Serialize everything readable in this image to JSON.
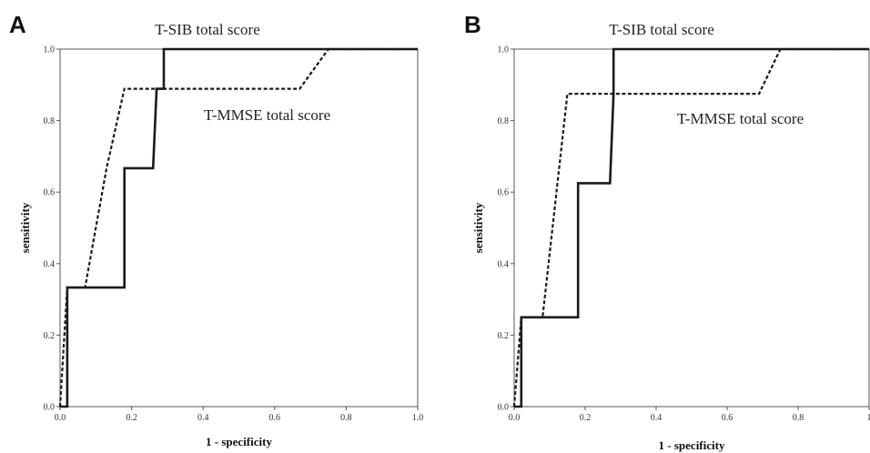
{
  "chart_data": [
    {
      "type": "line",
      "panel": "A",
      "xlabel": "1 - specificity",
      "ylabel": "sensitivity",
      "xlim": [
        0,
        1
      ],
      "ylim": [
        0,
        1
      ],
      "x_ticks": [
        "0.0",
        "0.2",
        "0.4",
        "0.6",
        "0.8",
        "1.0"
      ],
      "y_ticks": [
        "0.0",
        "0.2",
        "0.4",
        "0.6",
        "0.8",
        "1.0"
      ],
      "grid": false,
      "legend": "none",
      "series": [
        {
          "name": "T-SIB total score",
          "style": "solid",
          "points": [
            [
              0.0,
              0.0
            ],
            [
              0.02,
              0.0
            ],
            [
              0.02,
              0.333
            ],
            [
              0.18,
              0.333
            ],
            [
              0.18,
              0.667
            ],
            [
              0.26,
              0.667
            ],
            [
              0.27,
              0.889
            ],
            [
              0.29,
              0.889
            ],
            [
              0.29,
              1.0
            ],
            [
              1.0,
              1.0
            ]
          ]
        },
        {
          "name": "T-MMSE total score",
          "style": "dotted",
          "points": [
            [
              0.0,
              0.0
            ],
            [
              0.02,
              0.333
            ],
            [
              0.07,
              0.333
            ],
            [
              0.13,
              0.667
            ],
            [
              0.18,
              0.889
            ],
            [
              0.67,
              0.889
            ],
            [
              0.75,
              1.0
            ],
            [
              1.0,
              1.0
            ]
          ]
        }
      ]
    },
    {
      "type": "line",
      "panel": "B",
      "xlabel": "1 - specificity",
      "ylabel": "sensitivity",
      "xlim": [
        0,
        1
      ],
      "ylim": [
        0,
        1
      ],
      "x_ticks": [
        "0.0",
        "0.2",
        "0.4",
        "0.6",
        "0.8",
        "1"
      ],
      "y_ticks": [
        "0.0",
        "0.2",
        "0.4",
        "0.6",
        "0.8",
        "1.0"
      ],
      "grid": false,
      "legend": "none",
      "series": [
        {
          "name": "T-SIB total score",
          "style": "solid",
          "points": [
            [
              0.0,
              0.0
            ],
            [
              0.02,
              0.0
            ],
            [
              0.02,
              0.25
            ],
            [
              0.18,
              0.25
            ],
            [
              0.18,
              0.625
            ],
            [
              0.27,
              0.625
            ],
            [
              0.28,
              0.875
            ],
            [
              0.28,
              1.0
            ],
            [
              1.0,
              1.0
            ]
          ]
        },
        {
          "name": "T-MMSE total score",
          "style": "dotted",
          "points": [
            [
              0.0,
              0.0
            ],
            [
              0.02,
              0.25
            ],
            [
              0.08,
              0.25
            ],
            [
              0.15,
              0.875
            ],
            [
              0.69,
              0.875
            ],
            [
              0.75,
              1.0
            ],
            [
              1.0,
              1.0
            ]
          ]
        }
      ]
    }
  ]
}
